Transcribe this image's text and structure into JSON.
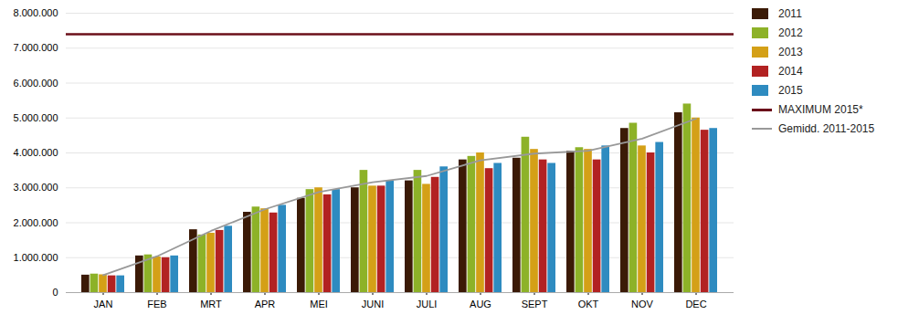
{
  "chart_data": {
    "type": "bar",
    "categories": [
      "JAN",
      "FEB",
      "MRT",
      "APR",
      "MEI",
      "JUNI",
      "JULI",
      "AUG",
      "SEPT",
      "OKT",
      "NOV",
      "DEC"
    ],
    "series": [
      {
        "name": "2011",
        "color": "#3B1A06",
        "values": [
          500000,
          1050000,
          1800000,
          2300000,
          2700000,
          3000000,
          3200000,
          3800000,
          3850000,
          4050000,
          4700000,
          5150000
        ]
      },
      {
        "name": "2012",
        "color": "#8DB228",
        "values": [
          530000,
          1080000,
          1650000,
          2450000,
          2950000,
          3500000,
          3500000,
          3900000,
          4450000,
          4150000,
          4850000,
          5400000
        ]
      },
      {
        "name": "2013",
        "color": "#D4A017",
        "values": [
          510000,
          1020000,
          1700000,
          2400000,
          3000000,
          3050000,
          3100000,
          4000000,
          4100000,
          4100000,
          4200000,
          5000000
        ]
      },
      {
        "name": "2014",
        "color": "#B22222",
        "values": [
          480000,
          1000000,
          1780000,
          2280000,
          2800000,
          3050000,
          3300000,
          3550000,
          3800000,
          3800000,
          4000000,
          4650000
        ]
      },
      {
        "name": "2015",
        "color": "#2E8BC0",
        "values": [
          480000,
          1050000,
          1900000,
          2500000,
          2950000,
          3200000,
          3600000,
          3700000,
          3700000,
          4200000,
          4300000,
          4700000
        ]
      },
      {
        "name": "MAXIMUM 2015*",
        "type": "rule",
        "color": "#6B0F1A",
        "value": 7400000
      },
      {
        "name": "Gemidd. 2011-2015",
        "type": "line",
        "color": "#999999",
        "values": [
          500000,
          1040000,
          1766000,
          2386000,
          2880000,
          3160000,
          3340000,
          3790000,
          3980000,
          4060000,
          4410000,
          4980000
        ]
      }
    ],
    "ylim": [
      0,
      8000000
    ],
    "yticks": [
      0,
      {
        "value": 1000000,
        "label": "1.000.000"
      },
      {
        "value": 2000000,
        "label": "2.000.000"
      },
      {
        "value": 3000000,
        "label": "3.000.000"
      },
      {
        "value": 4000000,
        "label": "4.000.000"
      },
      {
        "value": 5000000,
        "label": "5.000.000"
      },
      {
        "value": 6000000,
        "label": "6.000.000"
      },
      {
        "value": 7000000,
        "label": "7.000.000"
      },
      {
        "value": 8000000,
        "label": "8.000.000"
      }
    ],
    "grid": true,
    "legend": "right"
  }
}
